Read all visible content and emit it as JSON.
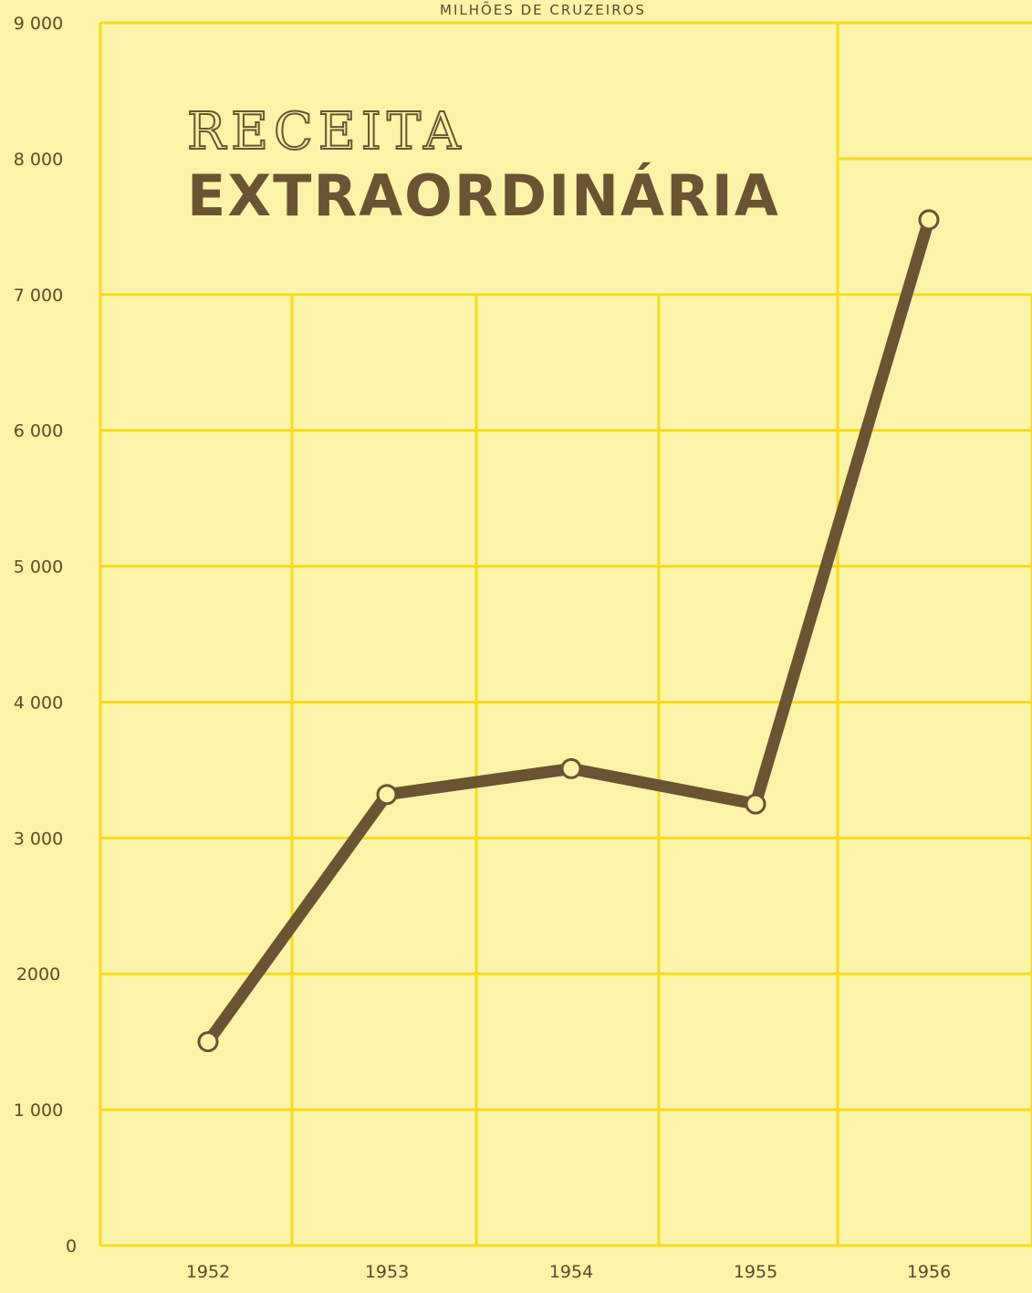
{
  "chart_data": {
    "type": "line",
    "title": "RECEITA EXTRAORDINÁRIA",
    "title_lines": [
      "RECEITA",
      "EXTRAORDINÁRIA"
    ],
    "unit_label": "MILHÕES DE CRUZEIROS",
    "categories": [
      "1952",
      "1953",
      "1954",
      "1955",
      "1956"
    ],
    "values": [
      1500,
      3320,
      3510,
      3250,
      7550
    ],
    "y_ticks": [
      0,
      1000,
      2000,
      3000,
      4000,
      5000,
      6000,
      7000,
      8000,
      9000
    ],
    "y_tick_labels": [
      "0",
      "1 000",
      "2000",
      "3 000",
      "4 000",
      "5 000",
      "6 000",
      "7 000",
      "8 000",
      "9 000"
    ],
    "ylim": [
      0,
      9000
    ],
    "grid": true,
    "legend": "none",
    "colors": {
      "background": "#fdf3a8",
      "grid": "#f5dc1e",
      "line": "#6b5333",
      "marker_fill": "#fdf3a8"
    }
  }
}
